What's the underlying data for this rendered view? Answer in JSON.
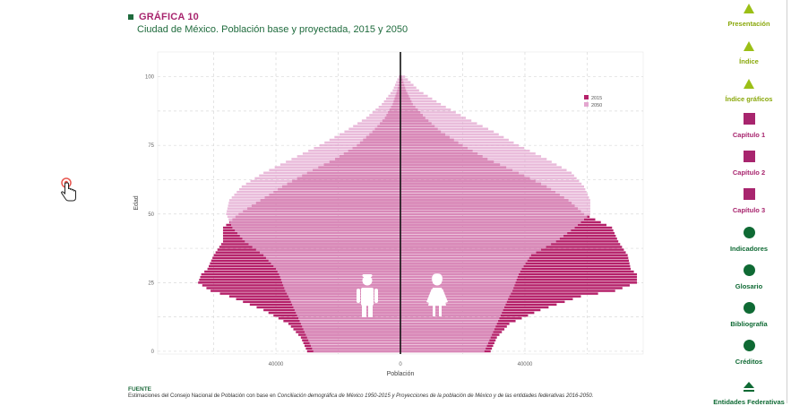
{
  "header": {
    "chart_label": "GRÁFICA 10",
    "chart_title": "Ciudad de México. Población base y proyectada, 2015 y 2050"
  },
  "source": {
    "label": "FUENTE",
    "text_prefix": "Estimaciones del Consejo Nacional de Población con base en ",
    "text_italic": "Conciliación demográfica de México 1950-2015 y Proyecciones de la población de México y de las entidades federativas 2016-2050."
  },
  "nav": {
    "items": [
      {
        "label": "Presentación",
        "shape": "triangle",
        "color": "#9bbf16",
        "icon": "triangle-up-icon"
      },
      {
        "label": "Índice",
        "shape": "triangle",
        "color": "#9bbf16",
        "icon": "triangle-up-icon"
      },
      {
        "label": "Índice gráficos",
        "shape": "triangle",
        "color": "#9bbf16",
        "icon": "triangle-up-icon"
      },
      {
        "label": "Capítulo 1",
        "shape": "square",
        "color": "#a8256e",
        "icon": "square-icon"
      },
      {
        "label": "Capítulo 2",
        "shape": "square",
        "color": "#a8256e",
        "icon": "square-icon"
      },
      {
        "label": "Capítulo 3",
        "shape": "square",
        "color": "#a8256e",
        "icon": "square-icon"
      },
      {
        "label": "Indicadores",
        "shape": "circle",
        "color": "#0f6a34",
        "icon": "circle-icon"
      },
      {
        "label": "Glosario",
        "shape": "circle",
        "color": "#0f6a34",
        "icon": "circle-icon"
      },
      {
        "label": "Bibliografía",
        "shape": "circle",
        "color": "#0f6a34",
        "icon": "circle-icon"
      },
      {
        "label": "Créditos",
        "shape": "circle",
        "color": "#0f6a34",
        "icon": "circle-icon"
      },
      {
        "label": "Entidades Federativas",
        "shape": "triangle-bar",
        "color": "#0f6a34",
        "icon": "eject-icon"
      }
    ]
  },
  "chart_data": {
    "type": "bar",
    "orientation": "horizontal-pyramid",
    "title": "Ciudad de México. Población base y proyectada, 2015 y 2050",
    "xlabel": "Población",
    "ylabel": "Edad",
    "xlim": [
      -78000,
      78000
    ],
    "ylim": [
      -1,
      109
    ],
    "xticks": [
      -40000,
      0,
      40000
    ],
    "xtick_labels": [
      "40000",
      "0",
      "40000"
    ],
    "yticks": [
      0,
      25,
      50,
      75,
      100
    ],
    "grid": true,
    "legend": "top-right",
    "colors": {
      "2015": "#b5216a",
      "2050": "#e3a6cf"
    },
    "age_points": [
      0,
      5,
      10,
      15,
      20,
      22,
      25,
      28,
      30,
      35,
      40,
      45,
      50,
      55,
      60,
      65,
      70,
      75,
      80,
      85,
      90,
      95,
      100,
      101
    ],
    "series": [
      {
        "name": "2015",
        "men": [
          30000,
          32000,
          36000,
          44000,
          55000,
          61000,
          65000,
          64000,
          62000,
          60000,
          57000,
          57000,
          52000,
          45000,
          38000,
          30000,
          21000,
          14000,
          9000,
          5000,
          2500,
          1000,
          200,
          0
        ],
        "women": [
          29000,
          31000,
          35000,
          45000,
          58000,
          69000,
          76000,
          76000,
          74000,
          73000,
          70000,
          68000,
          59000,
          54000,
          47000,
          38000,
          28000,
          20000,
          13000,
          8000,
          4000,
          1800,
          400,
          0
        ]
      },
      {
        "name": "2050",
        "men": [
          28000,
          30000,
          32000,
          34000,
          36000,
          37000,
          38000,
          39000,
          40000,
          44000,
          50000,
          54000,
          56000,
          55000,
          51000,
          44000,
          35000,
          26000,
          18000,
          11000,
          6000,
          2500,
          600,
          0
        ],
        "women": [
          27000,
          29000,
          31000,
          33000,
          35000,
          36000,
          37000,
          38000,
          39000,
          42000,
          50000,
          56000,
          61000,
          61000,
          59000,
          55000,
          47000,
          38000,
          30000,
          21000,
          13000,
          6000,
          1500,
          0
        ]
      }
    ]
  }
}
